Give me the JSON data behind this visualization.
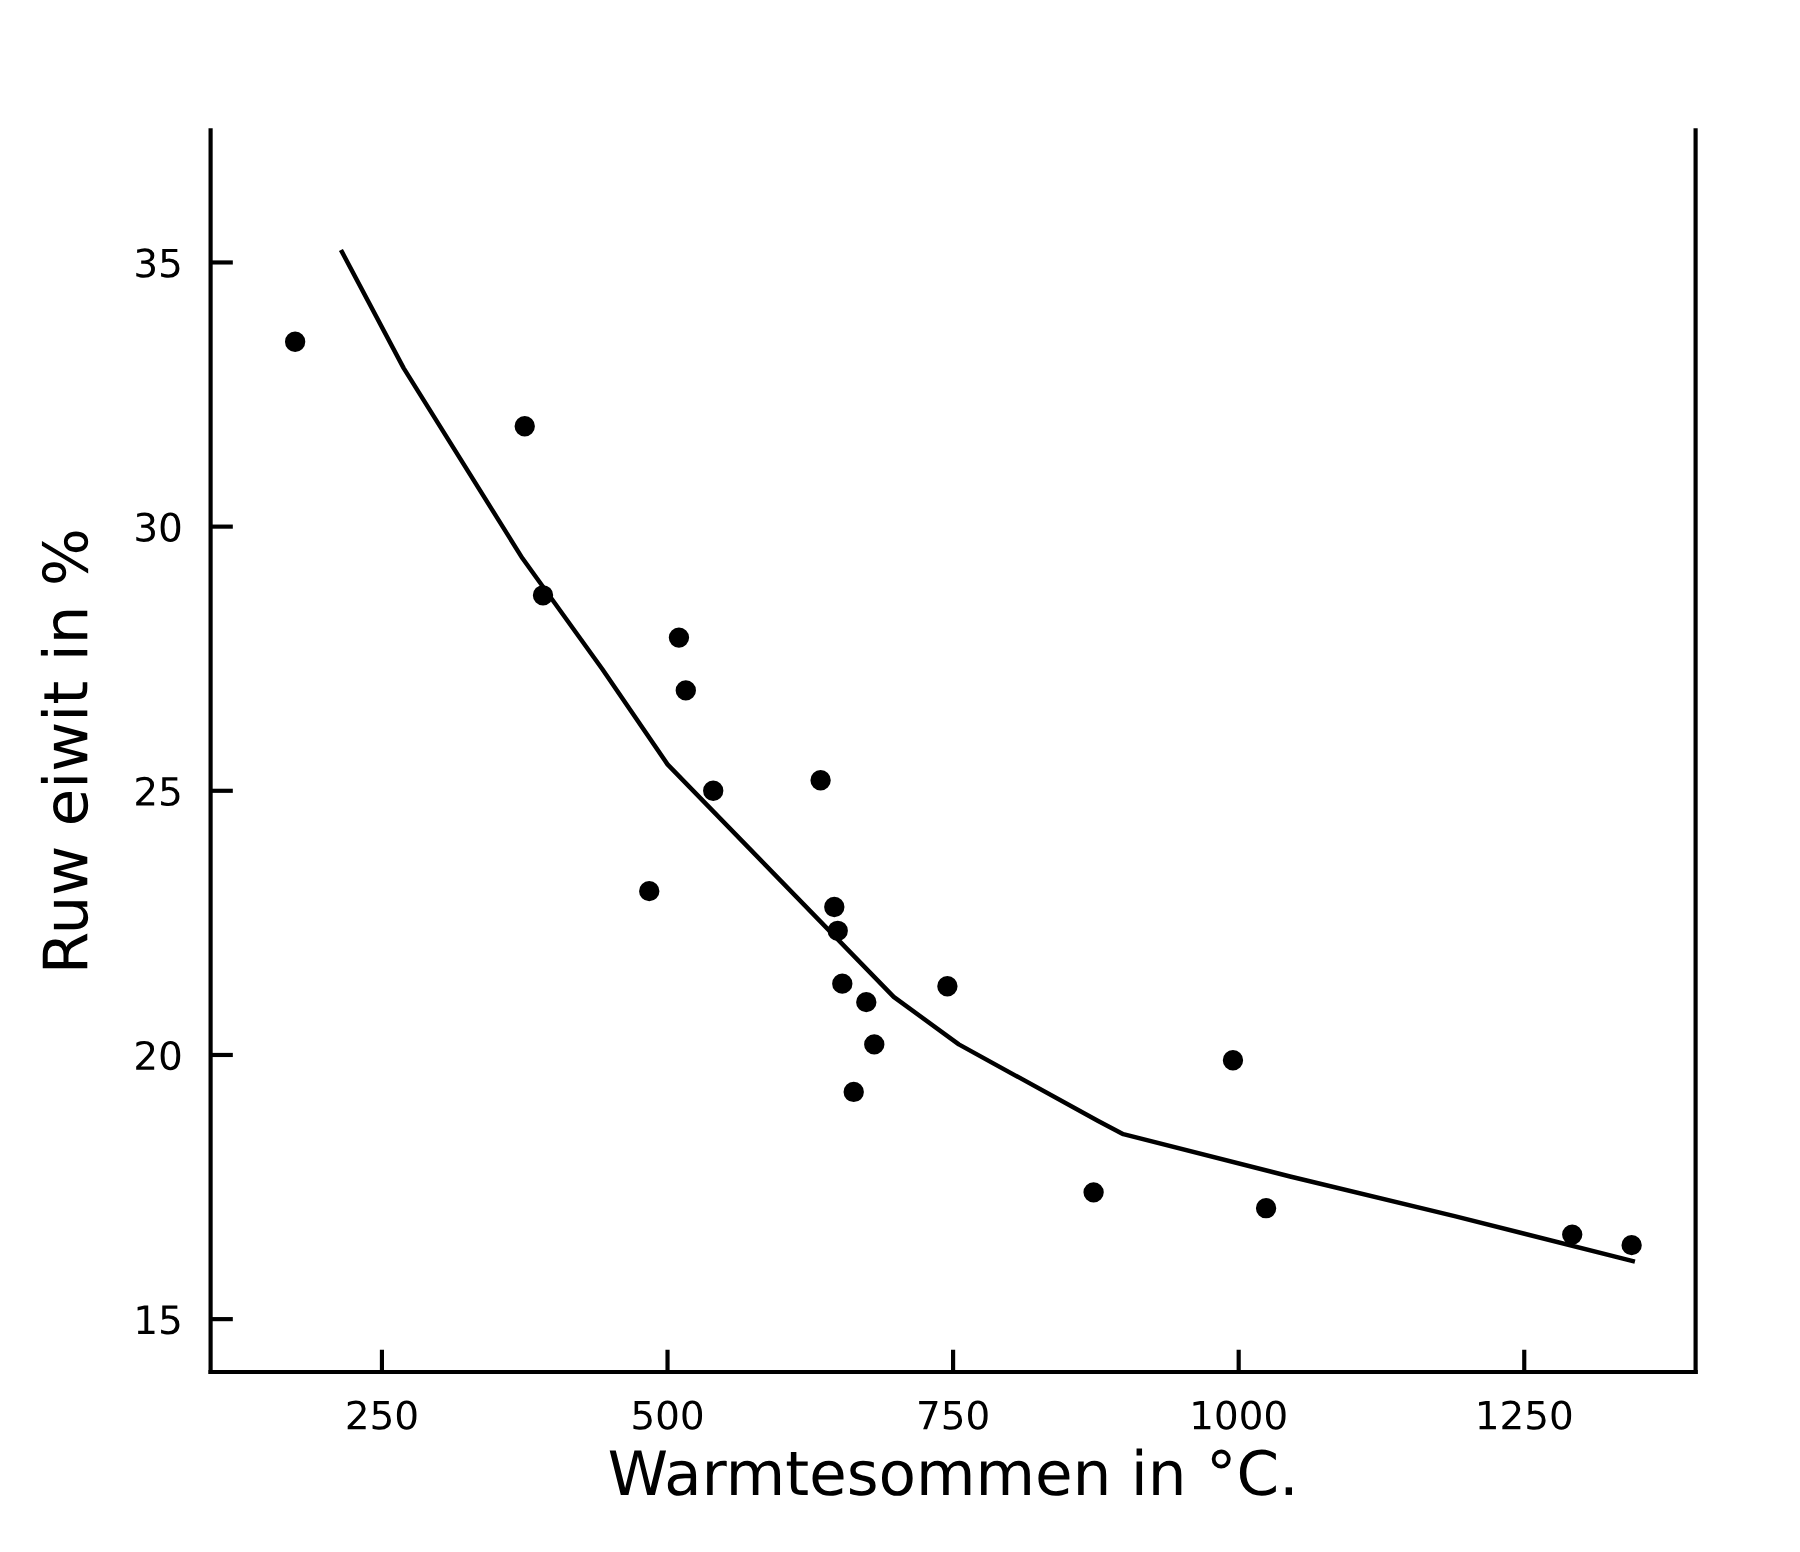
{
  "chart_data": {
    "type": "scatter",
    "xlabel": "Warmtesommen in °C.",
    "ylabel": "Ruw eiwit in %",
    "xlim": [
      100,
      1400
    ],
    "ylim": [
      14,
      37.5
    ],
    "xticks": [
      250,
      500,
      750,
      1000,
      1250
    ],
    "yticks": [
      15,
      20,
      25,
      30,
      35
    ],
    "grid": false,
    "legend": false,
    "series": [
      {
        "color": "#000000",
        "marker": "circle",
        "x": [
          174,
          375,
          391,
          510,
          516,
          540,
          484,
          634,
          646,
          649,
          653,
          674,
          681,
          663,
          745,
          873,
          995,
          1024,
          1292,
          1344
        ],
        "values": [
          33.5,
          31.9,
          28.7,
          27.9,
          26.9,
          25.0,
          23.1,
          25.2,
          22.8,
          22.35,
          21.35,
          21.0,
          20.2,
          19.3,
          21.3,
          17.4,
          19.9,
          17.1,
          16.6,
          16.4
        ]
      },
      {
        "type": "line",
        "color": "#000000",
        "marker": "none",
        "line_style": "solid",
        "x": [
          215,
          269,
          373,
          443,
          500,
          698,
          755,
          877,
          899,
          1045,
          1189,
          1345
        ],
        "values": [
          35.2,
          33.0,
          29.4,
          27.3,
          25.5,
          21.1,
          20.2,
          18.75,
          18.5,
          17.7,
          16.95,
          16.1
        ]
      }
    ]
  }
}
